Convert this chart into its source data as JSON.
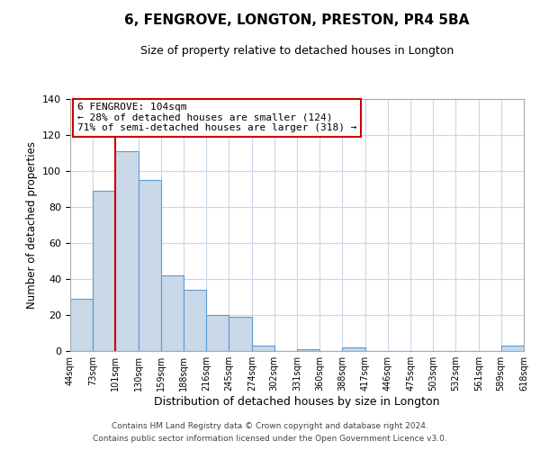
{
  "title": "6, FENGROVE, LONGTON, PRESTON, PR4 5BA",
  "subtitle": "Size of property relative to detached houses in Longton",
  "xlabel": "Distribution of detached houses by size in Longton",
  "ylabel": "Number of detached properties",
  "bar_edges": [
    44,
    73,
    101,
    130,
    159,
    188,
    216,
    245,
    274,
    302,
    331,
    360,
    388,
    417,
    446,
    475,
    503,
    532,
    561,
    589,
    618
  ],
  "bar_heights": [
    29,
    89,
    111,
    95,
    42,
    34,
    20,
    19,
    3,
    0,
    1,
    0,
    2,
    0,
    0,
    0,
    0,
    0,
    0,
    3
  ],
  "tick_labels": [
    "44sqm",
    "73sqm",
    "101sqm",
    "130sqm",
    "159sqm",
    "188sqm",
    "216sqm",
    "245sqm",
    "274sqm",
    "302sqm",
    "331sqm",
    "360sqm",
    "388sqm",
    "417sqm",
    "446sqm",
    "475sqm",
    "503sqm",
    "532sqm",
    "561sqm",
    "589sqm",
    "618sqm"
  ],
  "bar_color": "#c9d9e8",
  "bar_edge_color": "#5b9bd5",
  "vline_x": 101,
  "vline_color": "#cc0000",
  "annotation_title": "6 FENGROVE: 104sqm",
  "annotation_line1": "← 28% of detached houses are smaller (124)",
  "annotation_line2": "71% of semi-detached houses are larger (318) →",
  "annotation_box_color": "#ffffff",
  "annotation_box_edgecolor": "#cc0000",
  "ylim": [
    0,
    140
  ],
  "yticks": [
    0,
    20,
    40,
    60,
    80,
    100,
    120,
    140
  ],
  "footer1": "Contains HM Land Registry data © Crown copyright and database right 2024.",
  "footer2": "Contains public sector information licensed under the Open Government Licence v3.0.",
  "background_color": "#ffffff",
  "grid_color": "#c8d8e8"
}
